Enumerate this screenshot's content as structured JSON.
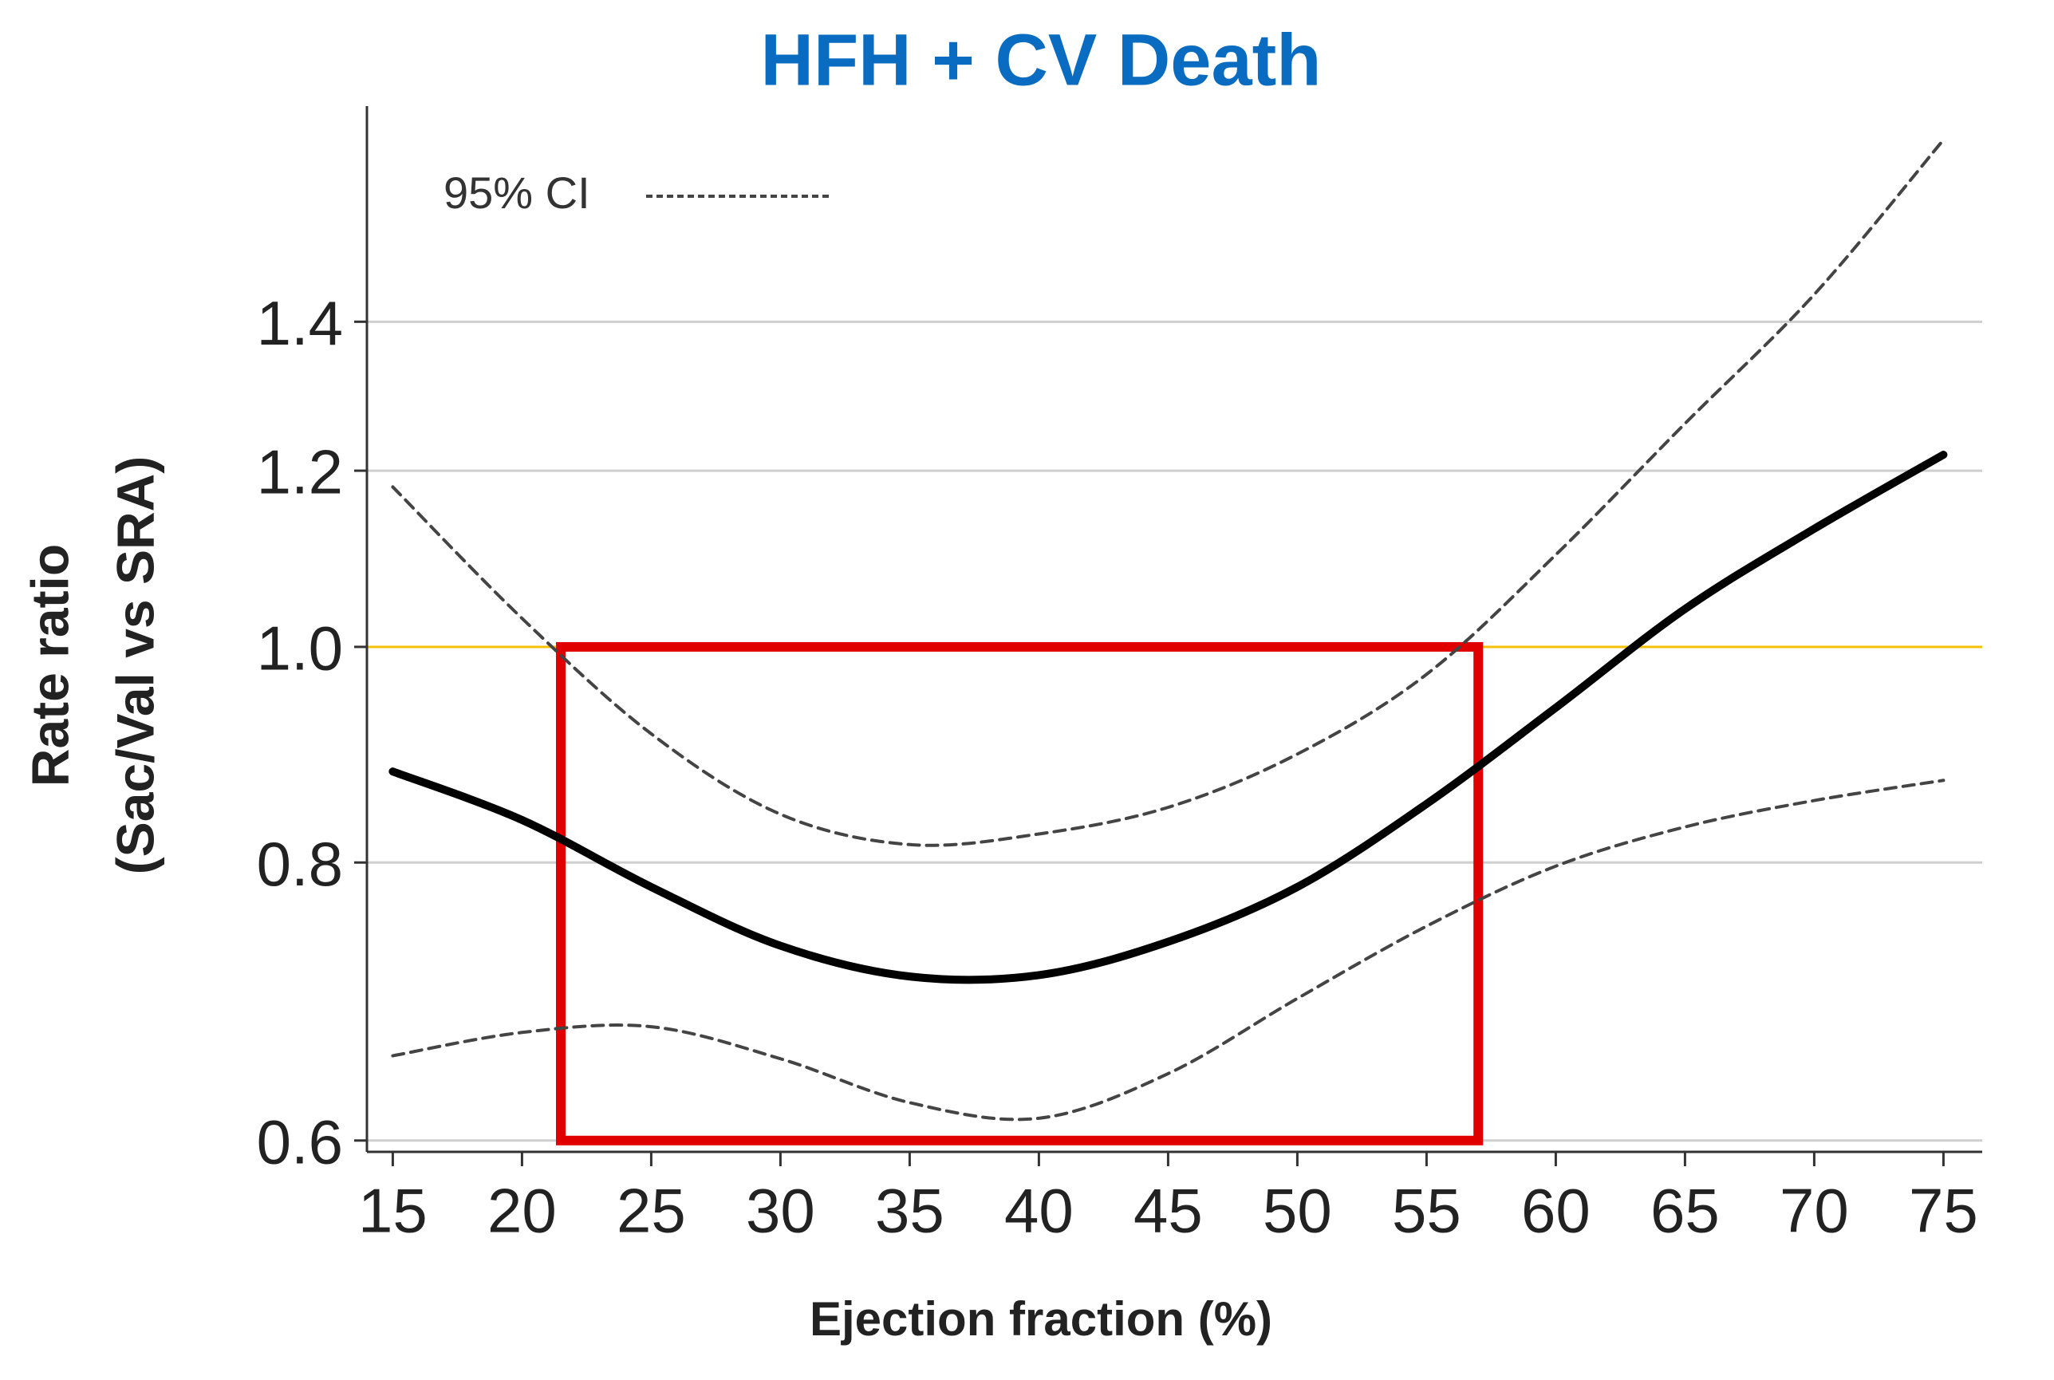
{
  "chart_data": {
    "type": "line",
    "title": "HFH + CV Death",
    "xlabel": "Ejection fraction (%)",
    "ylabel": [
      "Rate ratio",
      "(Sac/Val vs SRA)"
    ],
    "x": [
      15,
      20,
      25,
      30,
      35,
      40,
      45,
      50,
      55,
      60,
      65,
      70,
      75
    ],
    "series": [
      {
        "color": "#000000",
        "values": [
          0.879,
          0.836,
          0.78,
          0.734,
          0.711,
          0.712,
          0.737,
          0.78,
          0.85,
          0.939,
          1.04,
          1.13,
          1.22
        ]
      },
      {
        "name": "95% CI",
        "color": "#444444",
        "values": [
          1.18,
          1.03,
          0.914,
          0.841,
          0.815,
          0.824,
          0.847,
          0.895,
          0.972,
          1.1,
          1.26,
          1.44,
          1.69
        ],
        "lower": [
          0.655,
          0.671,
          0.675,
          0.653,
          0.624,
          0.614,
          0.643,
          0.695,
          0.749,
          0.797,
          0.83,
          0.853,
          0.871
        ]
      }
    ],
    "xlim": [
      14,
      76.5
    ],
    "ylim": [
      0.593,
      1.75
    ],
    "log_y": true,
    "xticks": [
      15,
      20,
      25,
      30,
      35,
      40,
      45,
      50,
      55,
      60,
      65,
      70,
      75
    ],
    "yticks": [
      {
        "value": 0.6,
        "label": "0.6"
      },
      {
        "value": 0.8,
        "label": "0.8"
      },
      {
        "value": 1.0,
        "label": "1.0"
      },
      {
        "value": 1.2,
        "label": "1.2"
      },
      {
        "value": 1.4,
        "label": "1.4"
      }
    ],
    "grid": true,
    "reference_line": {
      "value": 1.0,
      "color": "#f5c000"
    },
    "highlight": {
      "x": [
        21.5,
        57
      ],
      "y": [
        0.6,
        1.0
      ],
      "color": "#e00000"
    },
    "legend": "top-left"
  }
}
